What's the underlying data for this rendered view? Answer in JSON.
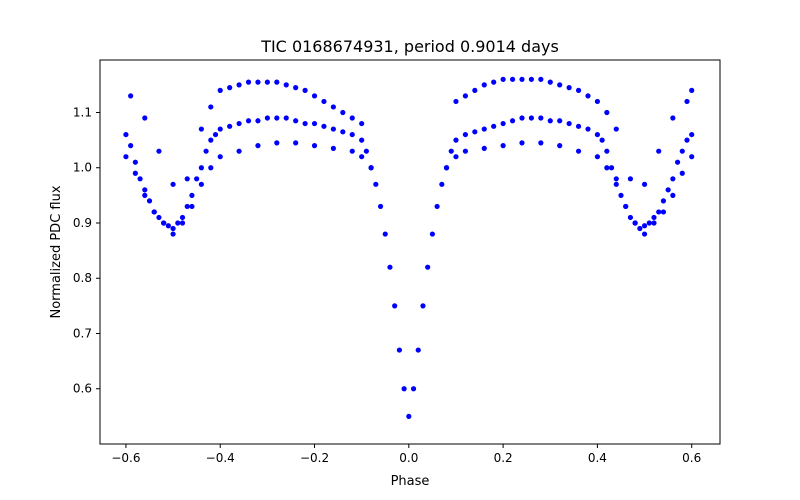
{
  "chart_data": {
    "type": "scatter",
    "title": "TIC 0168674931, period 0.9014 days",
    "xlabel": "Phase",
    "ylabel": "Normalized PDC flux",
    "xlim": [
      -0.655,
      0.66
    ],
    "ylim": [
      0.5,
      1.195
    ],
    "xticks": [
      -0.6,
      -0.4,
      -0.2,
      0.0,
      0.2,
      0.4,
      0.6
    ],
    "xtick_labels": [
      "−0.6",
      "−0.4",
      "−0.2",
      "0.0",
      "0.2",
      "0.4",
      "0.6"
    ],
    "yticks": [
      0.6,
      0.7,
      0.8,
      0.9,
      1.0,
      1.1
    ],
    "ytick_labels": [
      "0.6",
      "0.7",
      "0.8",
      "0.9",
      "1.0",
      "1.1"
    ],
    "grid": false,
    "marker_color": "#0000ff",
    "series": [
      {
        "x": [
          -0.6,
          -0.59,
          -0.58,
          -0.57,
          -0.56,
          -0.55,
          -0.54,
          -0.53,
          -0.52,
          -0.51,
          -0.5,
          -0.49,
          -0.48,
          -0.47,
          -0.46,
          -0.45,
          -0.44,
          -0.43,
          -0.42,
          -0.41,
          -0.4,
          -0.38,
          -0.36,
          -0.34,
          -0.32,
          -0.3,
          -0.28,
          -0.26,
          -0.24,
          -0.22,
          -0.2,
          -0.18,
          -0.16,
          -0.14,
          -0.12,
          -0.1,
          -0.09,
          -0.08,
          -0.07,
          -0.06,
          -0.05,
          -0.04,
          -0.03,
          -0.02,
          -0.01,
          0.0,
          0.01,
          0.02,
          0.03,
          0.04,
          0.05,
          0.06,
          0.07,
          0.08,
          0.09,
          0.1,
          0.12,
          0.14,
          0.16,
          0.18,
          0.2,
          0.22,
          0.24,
          0.26,
          0.28,
          0.3,
          0.32,
          0.34,
          0.36,
          0.38,
          0.4,
          0.41,
          0.42,
          0.43,
          0.44,
          0.45,
          0.46,
          0.47,
          0.48,
          0.49,
          0.5,
          0.51,
          0.52,
          0.53,
          0.54,
          0.55,
          0.56,
          0.57,
          0.58,
          0.59,
          0.6
        ],
        "y": [
          1.06,
          1.04,
          1.01,
          0.98,
          0.96,
          0.94,
          0.92,
          0.91,
          0.9,
          0.895,
          0.89,
          0.9,
          0.91,
          0.93,
          0.95,
          0.98,
          1.0,
          1.03,
          1.05,
          1.06,
          1.07,
          1.075,
          1.08,
          1.085,
          1.085,
          1.09,
          1.09,
          1.09,
          1.085,
          1.08,
          1.08,
          1.075,
          1.07,
          1.065,
          1.06,
          1.05,
          1.03,
          1.0,
          0.97,
          0.93,
          0.88,
          0.82,
          0.75,
          0.67,
          0.6,
          0.55,
          0.6,
          0.67,
          0.75,
          0.82,
          0.88,
          0.93,
          0.97,
          1.0,
          1.03,
          1.05,
          1.06,
          1.065,
          1.07,
          1.075,
          1.08,
          1.085,
          1.09,
          1.09,
          1.09,
          1.085,
          1.085,
          1.08,
          1.075,
          1.07,
          1.06,
          1.05,
          1.03,
          1.0,
          0.98,
          0.95,
          0.93,
          0.91,
          0.9,
          0.89,
          0.895,
          0.9,
          0.91,
          0.92,
          0.94,
          0.96,
          0.98,
          1.01,
          1.03,
          1.05,
          1.06
        ]
      },
      {
        "x": [
          -0.6,
          -0.58,
          -0.56,
          -0.54,
          -0.52,
          -0.5,
          -0.48,
          -0.46,
          -0.44,
          -0.42,
          -0.4,
          -0.36,
          -0.32,
          -0.28,
          -0.24,
          -0.2,
          -0.16,
          -0.12,
          -0.1,
          -0.08,
          0.08,
          0.1,
          0.12,
          0.16,
          0.2,
          0.24,
          0.28,
          0.32,
          0.36,
          0.4,
          0.42,
          0.44,
          0.46,
          0.48,
          0.5,
          0.52,
          0.54,
          0.56,
          0.58,
          0.6
        ],
        "y": [
          1.02,
          0.99,
          0.95,
          0.92,
          0.9,
          0.88,
          0.9,
          0.93,
          0.97,
          1.0,
          1.02,
          1.03,
          1.04,
          1.045,
          1.045,
          1.04,
          1.035,
          1.03,
          1.02,
          1.0,
          1.0,
          1.02,
          1.03,
          1.035,
          1.04,
          1.045,
          1.045,
          1.04,
          1.03,
          1.02,
          1.0,
          0.97,
          0.93,
          0.9,
          0.88,
          0.9,
          0.92,
          0.95,
          0.99,
          1.02
        ]
      },
      {
        "x": [
          -0.59,
          -0.56,
          -0.53,
          -0.5,
          -0.47,
          -0.44,
          -0.42,
          -0.4,
          -0.38,
          -0.36,
          -0.34,
          -0.32,
          -0.3,
          -0.28,
          -0.26,
          -0.24,
          -0.22,
          -0.2,
          -0.18,
          -0.16,
          -0.14,
          -0.12,
          -0.1,
          0.1,
          0.12,
          0.14,
          0.16,
          0.18,
          0.2,
          0.22,
          0.24,
          0.26,
          0.28,
          0.3,
          0.32,
          0.34,
          0.36,
          0.38,
          0.4,
          0.42,
          0.44,
          0.47,
          0.5,
          0.53,
          0.56,
          0.59,
          0.6
        ],
        "y": [
          1.13,
          1.09,
          1.03,
          0.97,
          0.98,
          1.07,
          1.11,
          1.14,
          1.145,
          1.15,
          1.155,
          1.155,
          1.155,
          1.155,
          1.15,
          1.145,
          1.14,
          1.13,
          1.12,
          1.11,
          1.1,
          1.09,
          1.08,
          1.12,
          1.13,
          1.14,
          1.15,
          1.155,
          1.16,
          1.16,
          1.16,
          1.16,
          1.16,
          1.155,
          1.15,
          1.145,
          1.14,
          1.13,
          1.12,
          1.1,
          1.07,
          0.98,
          0.97,
          1.03,
          1.09,
          1.12,
          1.14
        ]
      }
    ]
  }
}
